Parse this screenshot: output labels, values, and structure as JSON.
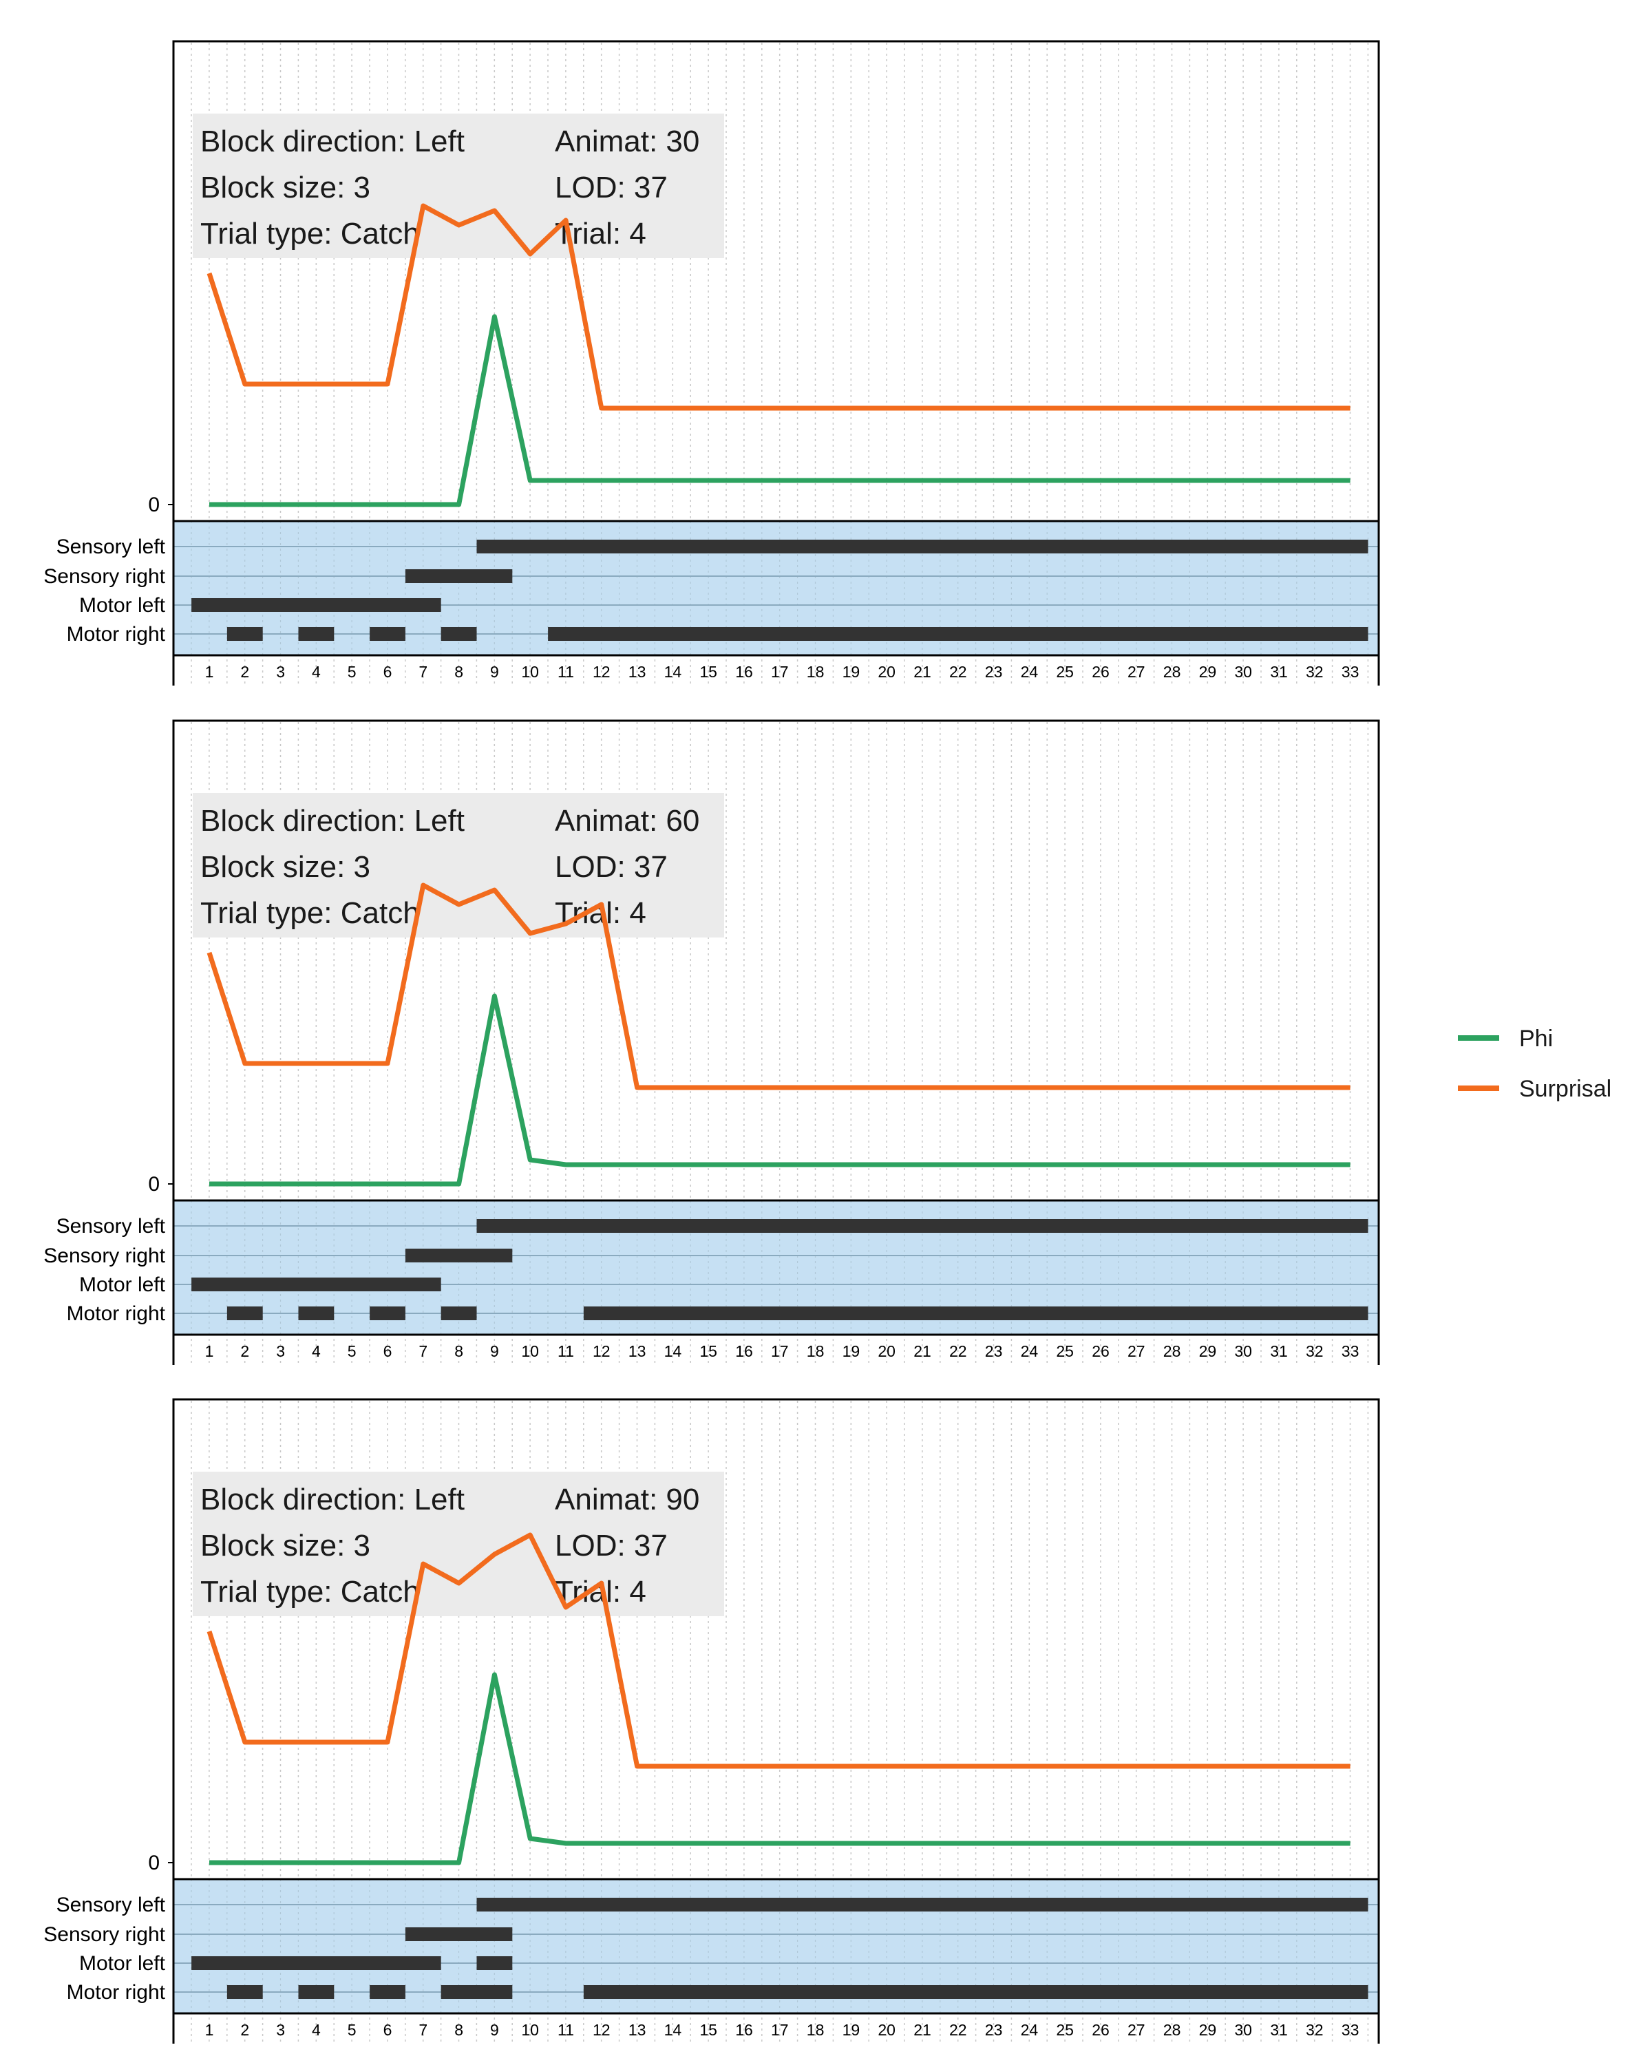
{
  "chart_data": [
    {
      "type": "line",
      "info": {
        "left": [
          "Block direction: Left",
          "Block size: 3",
          "Trial type: Catch"
        ],
        "right": [
          "Animat: 30",
          "LOD: 37",
          "Trial: 4"
        ]
      },
      "x": [
        1,
        2,
        3,
        4,
        5,
        6,
        7,
        8,
        9,
        10,
        11,
        12,
        13,
        14,
        15,
        16,
        17,
        18,
        19,
        20,
        21,
        22,
        23,
        24,
        25,
        26,
        27,
        28,
        29,
        30,
        31,
        32,
        33
      ],
      "series": [
        {
          "name": "Phi",
          "color": "#2ca25f",
          "values": [
            0,
            0,
            0,
            0,
            0,
            0,
            0,
            0,
            0.39,
            0.05,
            0.05,
            0.05,
            0.05,
            0.05,
            0.05,
            0.05,
            0.05,
            0.05,
            0.05,
            0.05,
            0.05,
            0.05,
            0.05,
            0.05,
            0.05,
            0.05,
            0.05,
            0.05,
            0.05,
            0.05,
            0.05,
            0.05,
            0.05
          ]
        },
        {
          "name": "Surprisal",
          "color": "#f26b1d",
          "values": [
            0.48,
            0.25,
            0.25,
            0.25,
            0.25,
            0.25,
            0.62,
            0.58,
            0.61,
            0.52,
            0.59,
            0.2,
            0.2,
            0.2,
            0.2,
            0.2,
            0.2,
            0.2,
            0.2,
            0.2,
            0.2,
            0.2,
            0.2,
            0.2,
            0.2,
            0.2,
            0.2,
            0.2,
            0.2,
            0.2,
            0.2,
            0.2,
            0.2
          ]
        }
      ],
      "y_tick": "0",
      "states": {
        "labels": [
          "Sensory left",
          "Sensory right",
          "Motor left",
          "Motor right"
        ],
        "intervals": [
          [
            [
              9,
              33
            ]
          ],
          [
            [
              7,
              9
            ]
          ],
          [
            [
              1,
              7
            ]
          ],
          [
            [
              2,
              2
            ],
            [
              4,
              4
            ],
            [
              6,
              6
            ],
            [
              8,
              8
            ],
            [
              11,
              33
            ]
          ]
        ]
      }
    },
    {
      "type": "line",
      "info": {
        "left": [
          "Block direction: Left",
          "Block size: 3",
          "Trial type: Catch"
        ],
        "right": [
          "Animat: 60",
          "LOD: 37",
          "Trial: 4"
        ]
      },
      "x": [
        1,
        2,
        3,
        4,
        5,
        6,
        7,
        8,
        9,
        10,
        11,
        12,
        13,
        14,
        15,
        16,
        17,
        18,
        19,
        20,
        21,
        22,
        23,
        24,
        25,
        26,
        27,
        28,
        29,
        30,
        31,
        32,
        33
      ],
      "series": [
        {
          "name": "Phi",
          "color": "#2ca25f",
          "values": [
            0,
            0,
            0,
            0,
            0,
            0,
            0,
            0,
            0.39,
            0.05,
            0.04,
            0.04,
            0.04,
            0.04,
            0.04,
            0.04,
            0.04,
            0.04,
            0.04,
            0.04,
            0.04,
            0.04,
            0.04,
            0.04,
            0.04,
            0.04,
            0.04,
            0.04,
            0.04,
            0.04,
            0.04,
            0.04,
            0.04
          ]
        },
        {
          "name": "Surprisal",
          "color": "#f26b1d",
          "values": [
            0.48,
            0.25,
            0.25,
            0.25,
            0.25,
            0.25,
            0.62,
            0.58,
            0.61,
            0.52,
            0.54,
            0.58,
            0.2,
            0.2,
            0.2,
            0.2,
            0.2,
            0.2,
            0.2,
            0.2,
            0.2,
            0.2,
            0.2,
            0.2,
            0.2,
            0.2,
            0.2,
            0.2,
            0.2,
            0.2,
            0.2,
            0.2,
            0.2
          ]
        }
      ],
      "y_tick": "0",
      "states": {
        "labels": [
          "Sensory left",
          "Sensory right",
          "Motor left",
          "Motor right"
        ],
        "intervals": [
          [
            [
              9,
              33
            ]
          ],
          [
            [
              7,
              9
            ]
          ],
          [
            [
              1,
              7
            ]
          ],
          [
            [
              2,
              2
            ],
            [
              4,
              4
            ],
            [
              6,
              6
            ],
            [
              8,
              8
            ],
            [
              12,
              33
            ]
          ]
        ]
      }
    },
    {
      "type": "line",
      "info": {
        "left": [
          "Block direction: Left",
          "Block size: 3",
          "Trial type: Catch"
        ],
        "right": [
          "Animat: 90",
          "LOD: 37",
          "Trial: 4"
        ]
      },
      "x": [
        1,
        2,
        3,
        4,
        5,
        6,
        7,
        8,
        9,
        10,
        11,
        12,
        13,
        14,
        15,
        16,
        17,
        18,
        19,
        20,
        21,
        22,
        23,
        24,
        25,
        26,
        27,
        28,
        29,
        30,
        31,
        32,
        33
      ],
      "series": [
        {
          "name": "Phi",
          "color": "#2ca25f",
          "values": [
            0,
            0,
            0,
            0,
            0,
            0,
            0,
            0,
            0.39,
            0.05,
            0.04,
            0.04,
            0.04,
            0.04,
            0.04,
            0.04,
            0.04,
            0.04,
            0.04,
            0.04,
            0.04,
            0.04,
            0.04,
            0.04,
            0.04,
            0.04,
            0.04,
            0.04,
            0.04,
            0.04,
            0.04,
            0.04,
            0.04
          ]
        },
        {
          "name": "Surprisal",
          "color": "#f26b1d",
          "values": [
            0.48,
            0.25,
            0.25,
            0.25,
            0.25,
            0.25,
            0.62,
            0.58,
            0.64,
            0.68,
            0.53,
            0.58,
            0.2,
            0.2,
            0.2,
            0.2,
            0.2,
            0.2,
            0.2,
            0.2,
            0.2,
            0.2,
            0.2,
            0.2,
            0.2,
            0.2,
            0.2,
            0.2,
            0.2,
            0.2,
            0.2,
            0.2,
            0.2
          ]
        }
      ],
      "y_tick": "0",
      "states": {
        "labels": [
          "Sensory left",
          "Sensory right",
          "Motor left",
          "Motor right"
        ],
        "intervals": [
          [
            [
              9,
              33
            ]
          ],
          [
            [
              7,
              9
            ]
          ],
          [
            [
              1,
              7
            ],
            [
              9,
              9
            ]
          ],
          [
            [
              2,
              2
            ],
            [
              4,
              4
            ],
            [
              6,
              6
            ],
            [
              8,
              9
            ],
            [
              12,
              33
            ]
          ]
        ]
      }
    }
  ],
  "legend": [
    {
      "name": "Phi",
      "color": "#2ca25f"
    },
    {
      "name": "Surprisal",
      "color": "#f26b1d"
    }
  ],
  "colors": {
    "panel_bg": "#c6e0f3",
    "state_bar": "#333333",
    "info_box": "#ebebeb",
    "grid": "#c8c8c8",
    "row_line": "#8aaabf"
  }
}
